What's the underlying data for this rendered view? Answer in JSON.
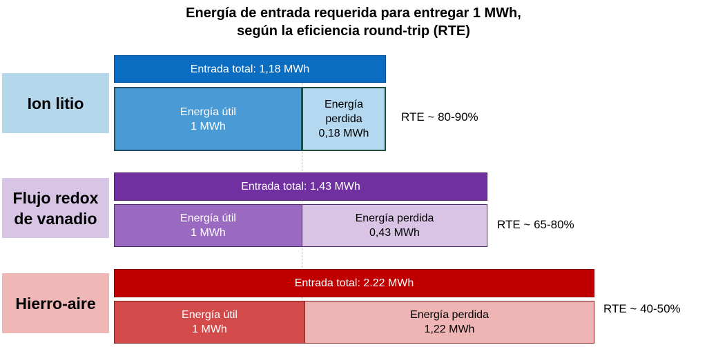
{
  "title": {
    "line1": "Energía de entrada requerida para entregar 1 MWh,",
    "line2": "según la eficiencia round-trip (RTE)"
  },
  "technologies": [
    {
      "name": "Ion litio",
      "total_label": "Entrada total: 1,18 MWh",
      "useful": {
        "line1": "Energía útil",
        "line2": "1 MWh"
      },
      "lost": {
        "line1": "Energía",
        "line2": "perdida",
        "line3": "0,18 MWh"
      },
      "rte": "RTE ~ 80-90%",
      "colors": {
        "label_bg": "#b4d7ec",
        "total": "#0b6dc1",
        "useful": "#4a9ad5",
        "lost": "#b4d8ef"
      }
    },
    {
      "name_line1": "Flujo redox",
      "name_line2": "de vanadio",
      "total_label": "Entrada total: 1,43 MWh",
      "useful": {
        "line1": "Energía útil",
        "line2": "1 MWh"
      },
      "lost": {
        "line1": "Energía perdida",
        "line2": "0,43 MWh"
      },
      "rte": "RTE ~ 65-80%",
      "colors": {
        "label_bg": "#d8c5e6",
        "total": "#7030a0",
        "useful": "#9a69c0",
        "lost": "#d9c4e6"
      }
    },
    {
      "name": "Hierro-aire",
      "total_label": "Entrada total: 2.22 MWh",
      "useful": {
        "line1": "Energía útil",
        "line2": "1 MWh"
      },
      "lost": {
        "line1": "Energía perdida",
        "line2": "1,22 MWh"
      },
      "rte": "RTE ~ 40-50%",
      "colors": {
        "label_bg": "#f0b7b7",
        "total": "#c00000",
        "useful": "#d34a4a",
        "lost": "#efb4b4"
      }
    }
  ]
}
